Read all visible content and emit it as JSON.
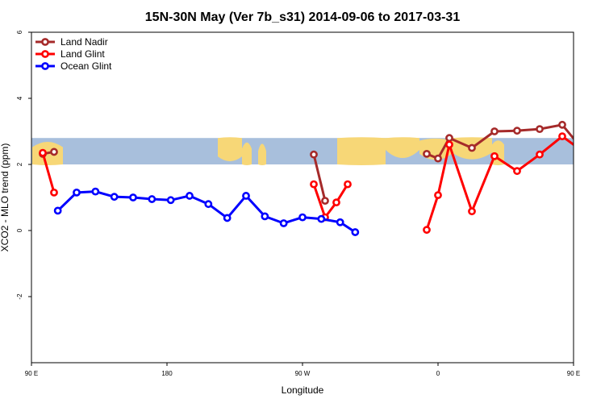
{
  "chart_data": {
    "type": "line",
    "title": "15N-30N May (Ver 7b_s31)   2014-09-06 to 2017-03-31",
    "xlabel": "Longitude",
    "ylabel": "XCO2 - MLO trend (ppm)",
    "xlim": [
      90,
      450
    ],
    "ylim": [
      -4,
      6
    ],
    "x_ticks": [
      {
        "value": 90,
        "label": "90 E"
      },
      {
        "value": 180,
        "label": "180"
      },
      {
        "value": 270,
        "label": "90 W"
      },
      {
        "value": 360,
        "label": "0"
      },
      {
        "value": 450,
        "label": "90 E"
      },
      {
        "value": 540,
        "label": "180"
      }
    ],
    "y_ticks": [
      {
        "value": -2,
        "label": "-2"
      },
      {
        "value": 0,
        "label": "0"
      },
      {
        "value": 2,
        "label": "2"
      },
      {
        "value": 4,
        "label": "4"
      },
      {
        "value": 6,
        "label": "6"
      }
    ],
    "map_band": {
      "ymin": 2.0,
      "ymax": 2.8,
      "ocean_color": "#a8bfdc",
      "land_color": "#f7d777"
    },
    "legend_position": "top-left",
    "grid": false,
    "series": [
      {
        "name": "Land Nadir",
        "color": "#a52a2a",
        "segments": [
          [
            [
              97.5,
              2.32
            ],
            [
              105,
              2.38
            ]
          ],
          [
            [
              277.5,
              2.3
            ],
            [
              285,
              0.9
            ]
          ],
          [
            [
              352.5,
              2.32
            ],
            [
              360,
              2.18
            ],
            [
              367.5,
              2.8
            ],
            [
              382.5,
              2.5
            ],
            [
              397.5,
              3.0
            ],
            [
              412.5,
              3.02
            ],
            [
              427.5,
              3.07
            ],
            [
              442.5,
              3.2
            ],
            [
              457.5,
              2.37
            ],
            [
              465,
              2.4
            ]
          ]
        ]
      },
      {
        "name": "Land Glint",
        "color": "#ff0000",
        "segments": [
          [
            [
              97.5,
              2.35
            ],
            [
              105,
              1.15
            ]
          ],
          [
            [
              277.5,
              1.4
            ],
            [
              285,
              0.4
            ],
            [
              292.5,
              0.85
            ],
            [
              300,
              1.4
            ]
          ],
          [
            [
              352.5,
              0.02
            ],
            [
              360,
              1.07
            ],
            [
              367.5,
              2.6
            ],
            [
              382.5,
              0.58
            ],
            [
              397.5,
              2.25
            ],
            [
              412.5,
              1.8
            ],
            [
              427.5,
              2.3
            ],
            [
              442.5,
              2.85
            ],
            [
              457.5,
              2.35
            ],
            [
              465,
              1.15
            ]
          ]
        ]
      },
      {
        "name": "Ocean Glint",
        "color": "#0000ff",
        "segments": [
          [
            [
              107.5,
              0.6
            ],
            [
              120,
              1.15
            ],
            [
              132.5,
              1.18
            ],
            [
              145,
              1.02
            ],
            [
              157.5,
              1.0
            ],
            [
              170,
              0.95
            ],
            [
              182.5,
              0.92
            ],
            [
              195,
              1.05
            ],
            [
              207.5,
              0.8
            ],
            [
              220,
              0.38
            ],
            [
              232.5,
              1.05
            ],
            [
              245,
              0.43
            ],
            [
              257.5,
              0.22
            ],
            [
              270,
              0.4
            ],
            [
              282.5,
              0.35
            ],
            [
              295,
              0.25
            ],
            [
              305,
              -0.05
            ]
          ]
        ]
      }
    ],
    "extra_segments_note": ""
  }
}
